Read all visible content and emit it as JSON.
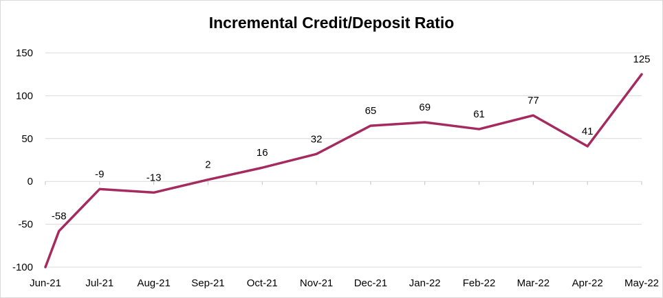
{
  "chart_data": {
    "type": "line",
    "title": "Incremental Credit/Deposit Ratio",
    "xlabel": "",
    "ylabel": "",
    "categories": [
      "Jun-21",
      "Jul-21",
      "Aug-21",
      "Sep-21",
      "Oct-21",
      "Nov-21",
      "Dec-21",
      "Jan-22",
      "Feb-22",
      "Mar-22",
      "Apr-22",
      "May-22"
    ],
    "series": [
      {
        "name": "",
        "color": "#A52A5F",
        "x": [
          "Jun-21",
          "Jun-21",
          "Jul-21",
          "Aug-21",
          "Sep-21",
          "Oct-21",
          "Nov-21",
          "Dec-21",
          "Jan-22",
          "Feb-22",
          "Mar-22",
          "Apr-22",
          "May-22"
        ],
        "x_offset": [
          0,
          0.25,
          1,
          2,
          3,
          4,
          5,
          6,
          7,
          8,
          9,
          10,
          11
        ],
        "values": [
          -100,
          -58,
          -9,
          -13,
          2,
          16,
          32,
          65,
          69,
          61,
          77,
          41,
          125
        ],
        "labels": [
          "",
          "-58",
          "-9",
          "-13",
          "2",
          "16",
          "32",
          "65",
          "69",
          "61",
          "77",
          "41",
          "125"
        ]
      }
    ],
    "ylim": [
      -100,
      150
    ],
    "yticks": [
      -100,
      -50,
      0,
      50,
      100,
      150
    ],
    "ytick_labels": [
      "-100",
      "-50",
      "0",
      "50",
      "100",
      "150"
    ],
    "grid": true,
    "legend": "none"
  }
}
